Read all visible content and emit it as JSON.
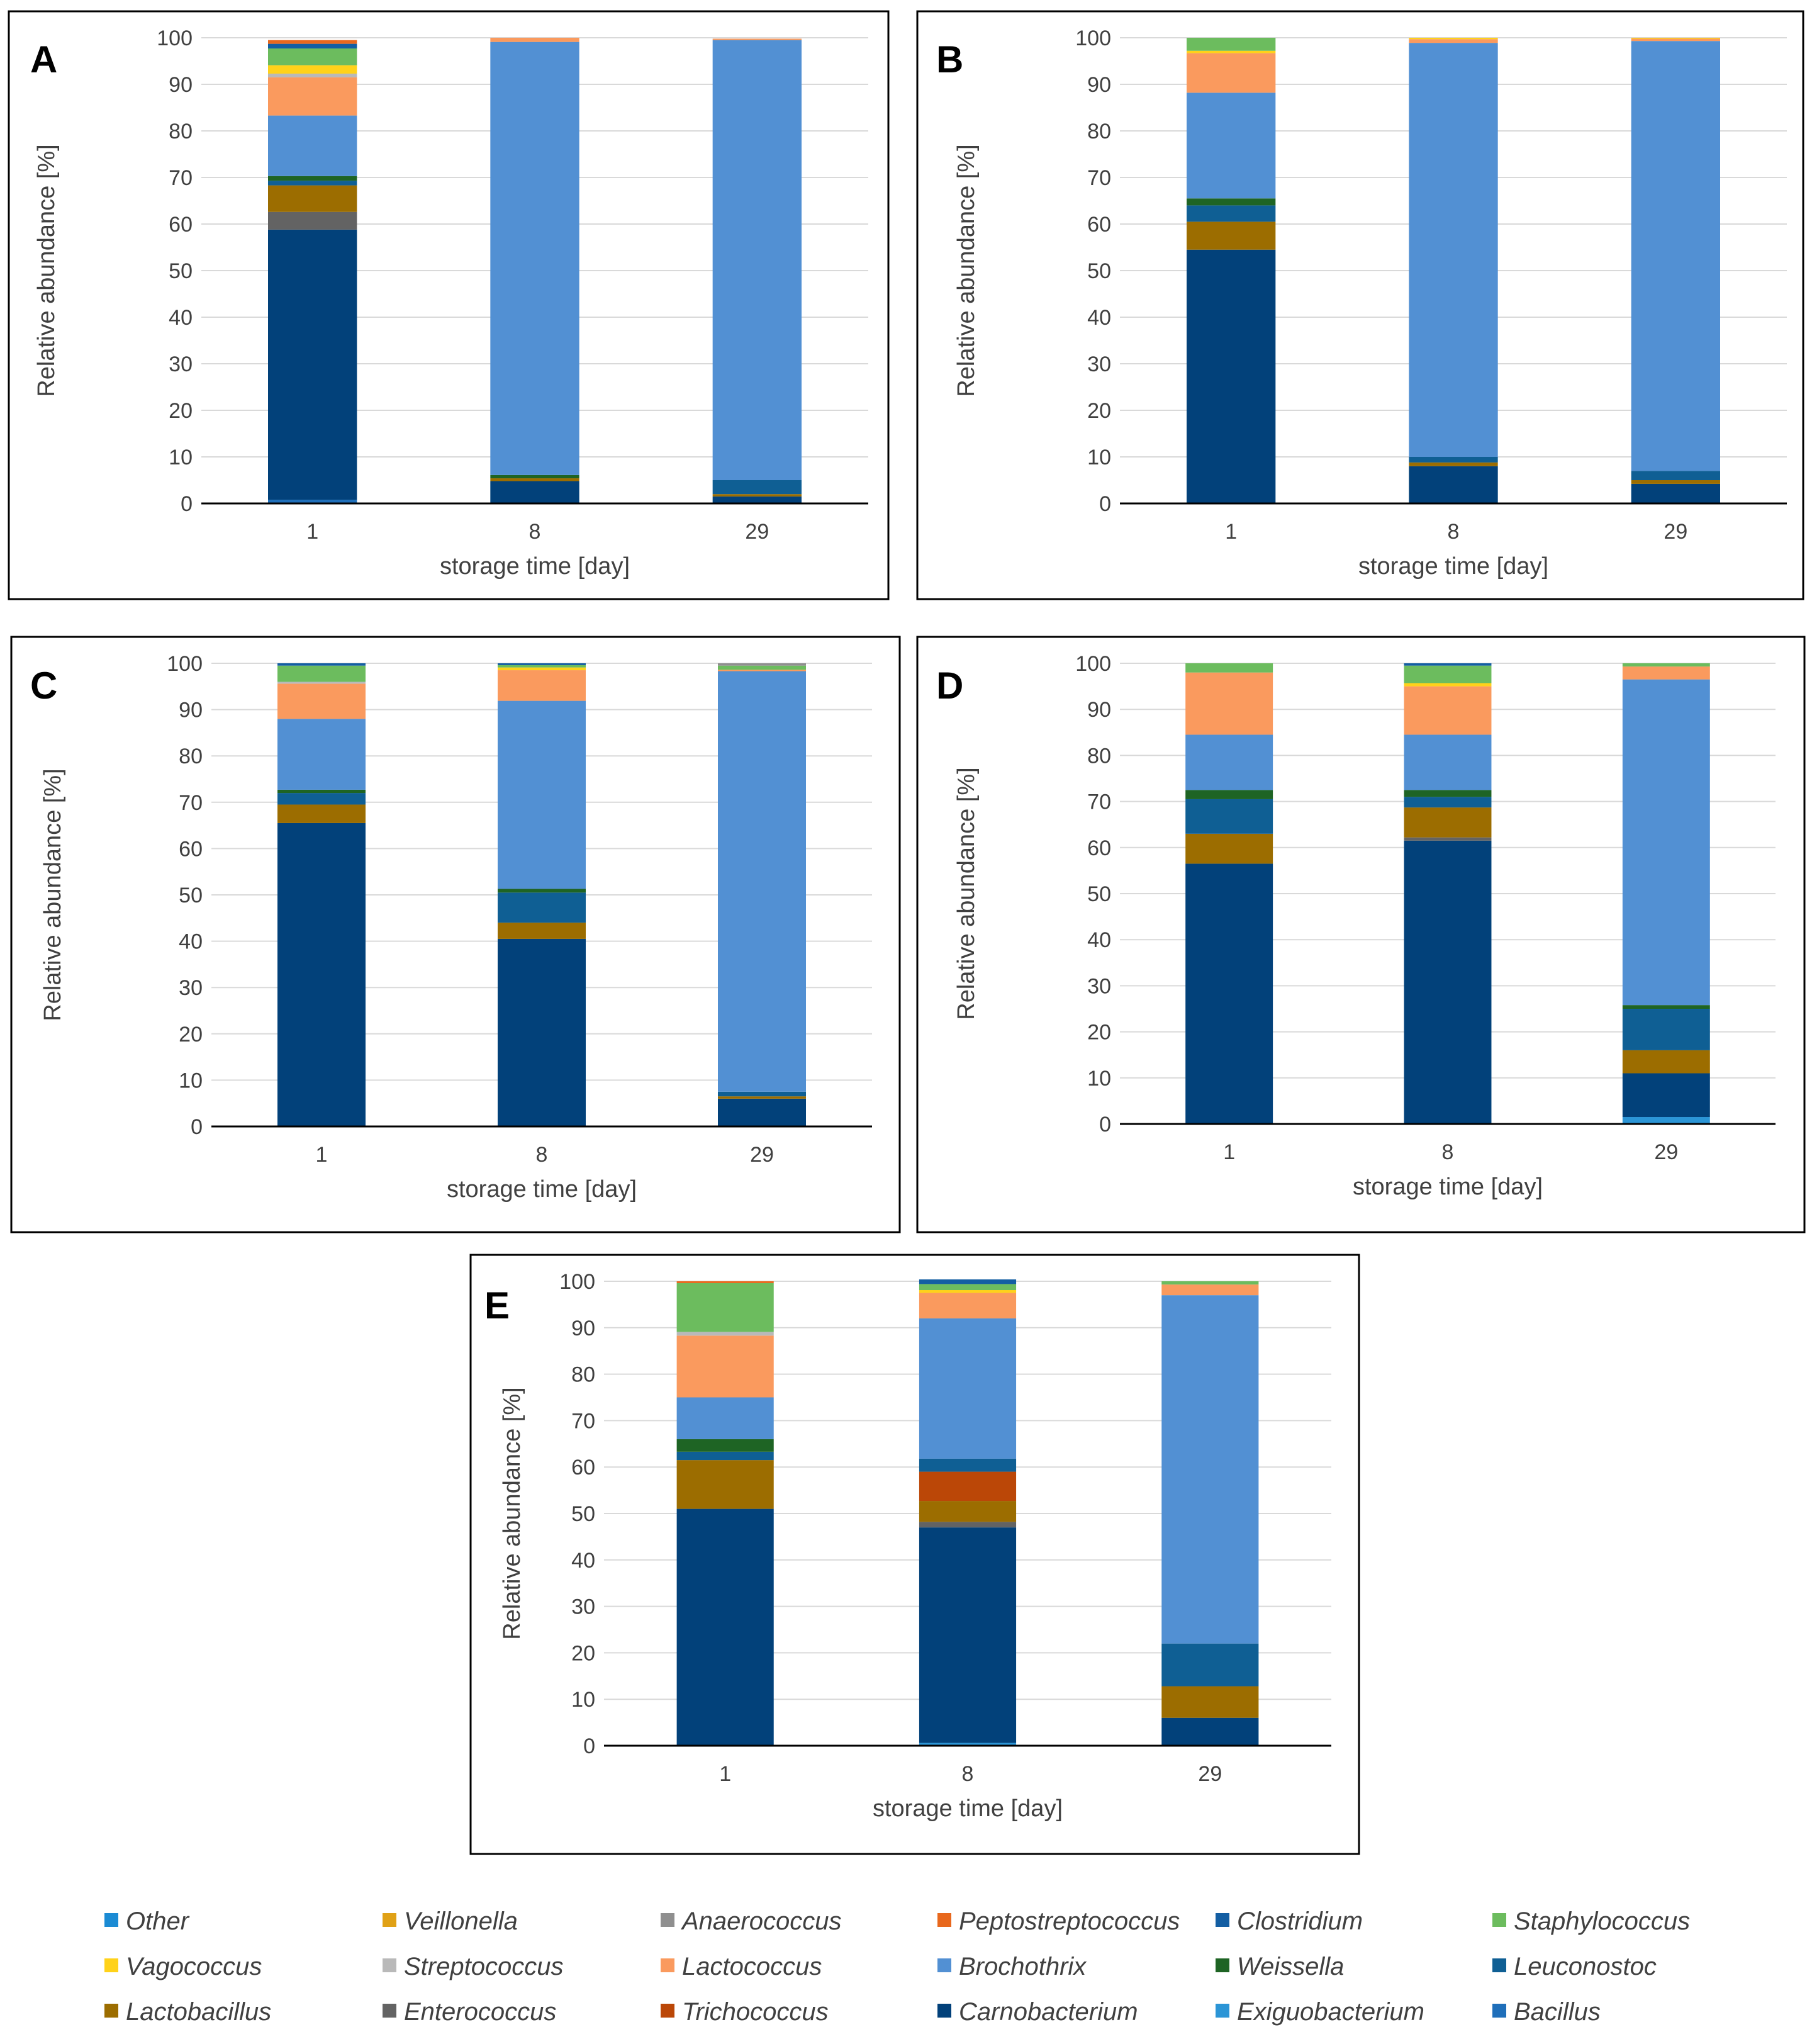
{
  "chart_data": {
    "type": "bar",
    "stacked": true,
    "ylim": [
      0,
      100
    ],
    "yticks": [
      "0",
      "10",
      "20",
      "30",
      "40",
      "50",
      "60",
      "70",
      "80",
      "90",
      "100"
    ],
    "taxa": [
      {
        "name": "Bacillus",
        "color": "#1f6fba"
      },
      {
        "name": "Exiguobacterium",
        "color": "#2b95d6"
      },
      {
        "name": "Carnobacterium",
        "color": "#02417a"
      },
      {
        "name": "Enterococcus",
        "color": "#636363"
      },
      {
        "name": "Lactobacillus",
        "color": "#9c6d00"
      },
      {
        "name": "Trichococcus",
        "color": "#bb4707"
      },
      {
        "name": "Leuconostoc",
        "color": "#0f5f94"
      },
      {
        "name": "Weissella",
        "color": "#1e6424"
      },
      {
        "name": "Brochothrix",
        "color": "#5290d3"
      },
      {
        "name": "Lactococcus",
        "color": "#fa9a5e"
      },
      {
        "name": "Streptococcus",
        "color": "#b9b9b9"
      },
      {
        "name": "Vagococcus",
        "color": "#ffd21a"
      },
      {
        "name": "Staphylococcus",
        "color": "#6cbc5e"
      },
      {
        "name": "Clostridium",
        "color": "#135ea3"
      },
      {
        "name": "Peptostreptococcus",
        "color": "#e8681d"
      },
      {
        "name": "Anaerococcus",
        "color": "#8f8f8f"
      },
      {
        "name": "Veillonella",
        "color": "#e0a116"
      },
      {
        "name": "Other",
        "color": "#1b8bd4"
      }
    ],
    "legend_order": [
      "Other",
      "Veillonella",
      "Anaerococcus",
      "Peptostreptococcus",
      "Clostridium",
      "Staphylococcus",
      "Vagococcus",
      "Streptococcus",
      "Lactococcus",
      "Brochothrix",
      "Weissella",
      "Leuconostoc",
      "Lactobacillus",
      "Enterococcus",
      "Trichococcus",
      "Carnobacterium",
      "Exiguobacterium",
      "Bacillus"
    ],
    "panels": [
      {
        "label": "A",
        "xlabel": "storage time [day]",
        "ylabel": "Relative abundance [%]",
        "categories": [
          "1",
          "8",
          "29"
        ],
        "stacks": [
          {
            "Bacillus": 0.8,
            "Carnobacterium": 58,
            "Enterococcus": 3.8,
            "Lactobacillus": 5.7,
            "Leuconostoc": 1,
            "Weissella": 1,
            "Brochothrix": 13,
            "Lactococcus": 8.2,
            "Streptococcus": 0.8,
            "Vagococcus": 1.8,
            "Staphylococcus": 3.6,
            "Peptostreptococcus": 0.8,
            "Clostridium": 1
          },
          {
            "Carnobacterium": 4.8,
            "Lactobacillus": 0.6,
            "Weissella": 0.7,
            "Brochothrix": 93,
            "Lactococcus": 0.9
          },
          {
            "Carnobacterium": 1.5,
            "Lactobacillus": 0.5,
            "Leuconostoc": 3,
            "Brochothrix": 94.5,
            "Lactococcus": 0.3
          }
        ]
      },
      {
        "label": "B",
        "xlabel": "storage time [day]",
        "ylabel": "Relative abundance [%]",
        "categories": [
          "1",
          "8",
          "29"
        ],
        "stacks": [
          {
            "Carnobacterium": 54.5,
            "Lactobacillus": 6,
            "Leuconostoc": 3.5,
            "Weissella": 1.5,
            "Brochothrix": 22.7,
            "Lactococcus": 8.5,
            "Vagococcus": 0.5,
            "Staphylococcus": 2.8
          },
          {
            "Carnobacterium": 8,
            "Lactobacillus": 0.8,
            "Leuconostoc": 1.2,
            "Brochothrix": 88.9,
            "Lactococcus": 0.8,
            "Vagococcus": 0.3
          },
          {
            "Carnobacterium": 4.2,
            "Lactobacillus": 0.8,
            "Leuconostoc": 2,
            "Brochothrix": 92.3,
            "Lactococcus": 0.5,
            "Vagococcus": 0.2
          }
        ]
      },
      {
        "label": "C",
        "xlabel": "storage time [day]",
        "ylabel": "Relative abundance [%]",
        "categories": [
          "1",
          "8",
          "29"
        ],
        "stacks": [
          {
            "Carnobacterium": 65.5,
            "Lactobacillus": 4,
            "Leuconostoc": 2.5,
            "Weissella": 0.7,
            "Brochothrix": 15.3,
            "Lactococcus": 7.6,
            "Streptococcus": 0.4,
            "Staphylococcus": 3.5,
            "Clostridium": 0.5
          },
          {
            "Carnobacterium": 40.5,
            "Lactobacillus": 3.5,
            "Leuconostoc": 6.5,
            "Weissella": 0.8,
            "Brochothrix": 40.6,
            "Lactococcus": 6.6,
            "Vagococcus": 0.6,
            "Staphylococcus": 0.5,
            "Clostridium": 0.4
          },
          {
            "Carnobacterium": 6,
            "Lactobacillus": 0.5,
            "Leuconostoc": 1,
            "Brochothrix": 90.8,
            "Lactococcus": 0.3,
            "Staphylococcus": 0.9,
            "Anaerococcus": 0.5
          }
        ]
      },
      {
        "label": "D",
        "xlabel": "storage time [day]",
        "ylabel": "Relative abundance [%]",
        "categories": [
          "1",
          "8",
          "29"
        ],
        "stacks": [
          {
            "Carnobacterium": 56.5,
            "Lactobacillus": 6.5,
            "Leuconostoc": 7.5,
            "Weissella": 2,
            "Brochothrix": 12,
            "Lactococcus": 13.5,
            "Staphylococcus": 2
          },
          {
            "Carnobacterium": 61.5,
            "Enterococcus": 0.7,
            "Lactobacillus": 6.5,
            "Leuconostoc": 2.3,
            "Weissella": 1.5,
            "Brochothrix": 12,
            "Lactococcus": 10.5,
            "Vagococcus": 0.7,
            "Staphylococcus": 3.8,
            "Clostridium": 0.5
          },
          {
            "Exiguobacterium": 1.5,
            "Carnobacterium": 9.5,
            "Lactobacillus": 5,
            "Leuconostoc": 9,
            "Weissella": 0.8,
            "Brochothrix": 70.7,
            "Lactococcus": 2.8,
            "Staphylococcus": 0.7
          }
        ]
      },
      {
        "label": "E",
        "xlabel": "storage time [day]",
        "ylabel": "Relative abundance [%]",
        "categories": [
          "1",
          "8",
          "29"
        ],
        "stacks": [
          {
            "Carnobacterium": 51,
            "Lactobacillus": 10.5,
            "Leuconostoc": 1.8,
            "Weissella": 2.7,
            "Brochothrix": 9,
            "Lactococcus": 13.3,
            "Streptococcus": 0.8,
            "Staphylococcus": 10.5,
            "Peptostreptococcus": 0.4
          },
          {
            "Exiguobacterium": 0.6,
            "Carnobacterium": 46.4,
            "Trichococcus": 6.3,
            "Enterococcus": 1.2,
            "Lactobacillus": 4.5,
            "Leuconostoc": 2.8,
            "Brochothrix": 30.2,
            "Lactococcus": 5.5,
            "Vagococcus": 0.6,
            "Staphylococcus": 1.3,
            "Clostridium": 1
          },
          {
            "Carnobacterium": 6,
            "Lactobacillus": 6.8,
            "Leuconostoc": 9.2,
            "Brochothrix": 75,
            "Lactococcus": 2.3,
            "Staphylococcus": 0.7
          }
        ]
      }
    ]
  }
}
